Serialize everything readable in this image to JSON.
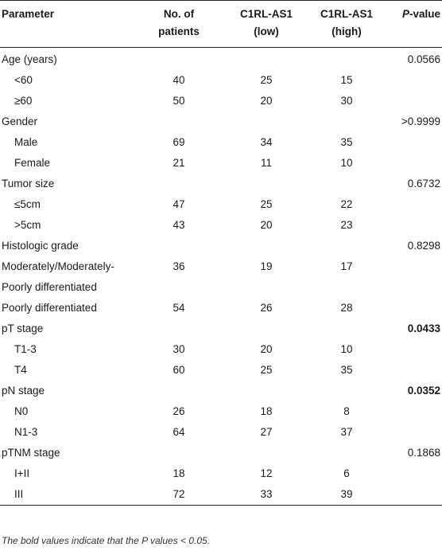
{
  "header": {
    "parameter": "Parameter",
    "no_of_patients_line1": "No. of",
    "no_of_patients_line2": "patients",
    "low_line1": "C1RL-AS1",
    "low_line2": "(low)",
    "high_line1": "C1RL-AS1",
    "high_line2": "(high)",
    "pvalue_italic": "P",
    "pvalue_rest": "-value"
  },
  "rows": [
    {
      "label": "Age (years)",
      "sub": false,
      "n": "",
      "low": "",
      "high": "",
      "p": "0.0566",
      "bold": false
    },
    {
      "label": "<60",
      "sub": true,
      "n": "40",
      "low": "25",
      "high": "15",
      "p": "",
      "bold": false
    },
    {
      "label": "≥60",
      "sub": true,
      "n": "50",
      "low": "20",
      "high": "30",
      "p": "",
      "bold": false
    },
    {
      "label": "Gender",
      "sub": false,
      "n": "",
      "low": "",
      "high": "",
      "p": ">0.9999",
      "bold": false
    },
    {
      "label": "Male",
      "sub": true,
      "n": "69",
      "low": "34",
      "high": "35",
      "p": "",
      "bold": false
    },
    {
      "label": "Female",
      "sub": true,
      "n": "21",
      "low": "11",
      "high": "10",
      "p": "",
      "bold": false
    },
    {
      "label": "Tumor size",
      "sub": false,
      "n": "",
      "low": "",
      "high": "",
      "p": "0.6732",
      "bold": false
    },
    {
      "label": "≤5cm",
      "sub": true,
      "n": "47",
      "low": "25",
      "high": "22",
      "p": "",
      "bold": false
    },
    {
      "label": ">5cm",
      "sub": true,
      "n": "43",
      "low": "20",
      "high": "23",
      "p": "",
      "bold": false
    },
    {
      "label": "Histologic grade",
      "sub": false,
      "n": "",
      "low": "",
      "high": "",
      "p": "0.8298",
      "bold": false
    },
    {
      "label": "Moderately/Moderately-",
      "sub": false,
      "n": "36",
      "low": "19",
      "high": "17",
      "p": "",
      "bold": false
    },
    {
      "label": "Poorly differentiated",
      "sub": false,
      "n": "",
      "low": "",
      "high": "",
      "p": "",
      "bold": false
    },
    {
      "label": "Poorly differentiated",
      "sub": false,
      "n": "54",
      "low": "26",
      "high": "28",
      "p": "",
      "bold": false
    },
    {
      "label": "pT stage",
      "sub": false,
      "n": "",
      "low": "",
      "high": "",
      "p": "0.0433",
      "bold": true
    },
    {
      "label": "T1-3",
      "sub": true,
      "n": "30",
      "low": "20",
      "high": "10",
      "p": "",
      "bold": false
    },
    {
      "label": "T4",
      "sub": true,
      "n": "60",
      "low": "25",
      "high": "35",
      "p": "",
      "bold": false
    },
    {
      "label": "pN stage",
      "sub": false,
      "n": "",
      "low": "",
      "high": "",
      "p": "0.0352",
      "bold": true
    },
    {
      "label": "N0",
      "sub": true,
      "n": "26",
      "low": "18",
      "high": "8",
      "p": "",
      "bold": false
    },
    {
      "label": "N1-3",
      "sub": true,
      "n": "64",
      "low": "27",
      "high": "37",
      "p": "",
      "bold": false
    },
    {
      "label": "pTNM stage",
      "sub": false,
      "n": "",
      "low": "",
      "high": "",
      "p": "0.1868",
      "bold": false
    },
    {
      "label": "I+II",
      "sub": true,
      "n": "18",
      "low": "12",
      "high": "6",
      "p": "",
      "bold": false
    },
    {
      "label": "III",
      "sub": true,
      "n": "72",
      "low": "33",
      "high": "39",
      "p": "",
      "bold": false
    }
  ],
  "footnote": "The bold values indicate that the P values < 0.05."
}
